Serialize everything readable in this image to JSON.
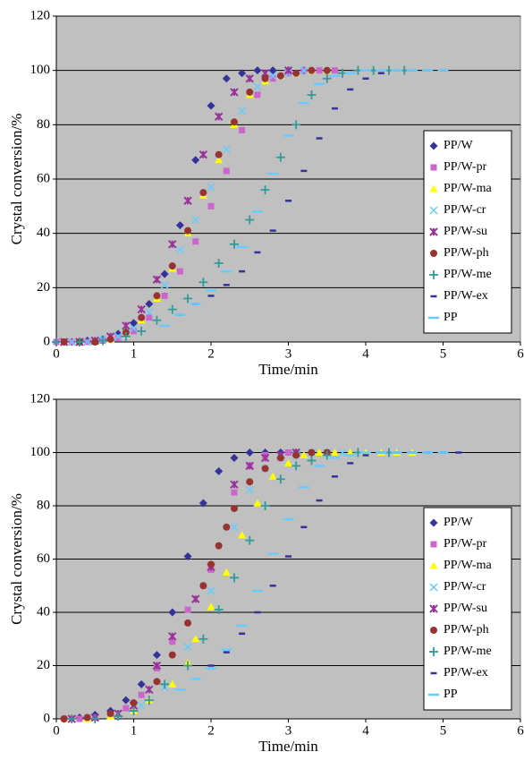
{
  "chart_data": [
    {
      "type": "scatter",
      "xlabel": "Time/min",
      "ylabel": "Crystal conversion/%",
      "xlim": [
        0,
        6
      ],
      "ylim": [
        0,
        120
      ],
      "xticks": [
        0,
        1,
        2,
        3,
        4,
        5,
        6
      ],
      "yticks": [
        0,
        20,
        40,
        60,
        80,
        100,
        120
      ],
      "grid": true,
      "legend": "right",
      "series": [
        {
          "name": "PP/W",
          "color": "#333399",
          "marker": "diamond",
          "x": [
            0,
            0.2,
            0.4,
            0.6,
            0.8,
            1.0,
            1.2,
            1.4,
            1.6,
            1.8,
            2.0,
            2.2,
            2.4,
            2.6,
            2.8,
            3.0,
            3.2
          ],
          "values": [
            0,
            0,
            0.5,
            1,
            3,
            7,
            14,
            25,
            43,
            67,
            87,
            97,
            99,
            100,
            100,
            100,
            100
          ]
        },
        {
          "name": "PP/W-pr",
          "color": "#cc66cc",
          "marker": "square",
          "x": [
            0,
            0.2,
            0.4,
            0.6,
            0.8,
            1.0,
            1.2,
            1.4,
            1.6,
            1.8,
            2.0,
            2.2,
            2.4,
            2.6,
            2.8,
            3.0,
            3.2,
            3.4,
            3.6
          ],
          "values": [
            0,
            0,
            0,
            0.5,
            1.5,
            4,
            9,
            17,
            26,
            37,
            50,
            63,
            78,
            91,
            97,
            99,
            100,
            100,
            100
          ]
        },
        {
          "name": "PP/W-ma",
          "color": "#ffff00",
          "marker": "triangle",
          "x": [
            0.1,
            0.3,
            0.5,
            0.7,
            0.9,
            1.1,
            1.3,
            1.5,
            1.7,
            1.9,
            2.1,
            2.3,
            2.5,
            2.7,
            2.9,
            3.1,
            3.3,
            3.5
          ],
          "values": [
            0,
            0,
            0,
            1,
            2.5,
            8,
            16,
            27,
            40,
            54,
            67,
            80,
            91,
            96,
            98,
            99,
            100,
            100
          ]
        },
        {
          "name": "PP/W-cr",
          "color": "#66ccff",
          "marker": "x",
          "x": [
            0.2,
            0.4,
            0.6,
            0.8,
            1.0,
            1.2,
            1.4,
            1.6,
            1.8,
            2.0,
            2.2,
            2.4,
            2.6,
            2.8,
            3.0,
            3.2
          ],
          "values": [
            0,
            0,
            1,
            2,
            5,
            11,
            21,
            34,
            45,
            57,
            71,
            85,
            94,
            98,
            99,
            100
          ]
        },
        {
          "name": "PP/W-su",
          "color": "#993399",
          "marker": "star",
          "x": [
            0.1,
            0.3,
            0.5,
            0.7,
            0.9,
            1.1,
            1.3,
            1.5,
            1.7,
            1.9,
            2.1,
            2.3,
            2.5,
            2.7,
            3.0
          ],
          "values": [
            0,
            0,
            0.5,
            2,
            6,
            12,
            23,
            36,
            52,
            69,
            83,
            92,
            97,
            99,
            100
          ]
        },
        {
          "name": "PP/W-ph",
          "color": "#993333",
          "marker": "circle",
          "x": [
            0.1,
            0.3,
            0.5,
            0.7,
            0.9,
            1.1,
            1.3,
            1.5,
            1.7,
            1.9,
            2.1,
            2.3,
            2.5,
            2.7,
            2.9,
            3.1,
            3.3,
            3.5
          ],
          "values": [
            0,
            0,
            0,
            1,
            3.5,
            9,
            17,
            28,
            41,
            55,
            69,
            81,
            92,
            97,
            98,
            99,
            100,
            100
          ]
        },
        {
          "name": "PP/W-me",
          "color": "#339999",
          "marker": "plus",
          "x": [
            0,
            0.3,
            0.6,
            0.9,
            1.1,
            1.3,
            1.5,
            1.7,
            1.9,
            2.1,
            2.3,
            2.5,
            2.7,
            2.9,
            3.1,
            3.3,
            3.5,
            3.7,
            3.9,
            4.1,
            4.3,
            4.5
          ],
          "values": [
            0,
            0,
            0.5,
            2,
            4,
            8,
            12,
            16,
            22,
            29,
            36,
            45,
            56,
            68,
            80,
            91,
            97,
            99,
            100,
            100,
            100,
            100
          ]
        },
        {
          "name": "PP/W-ex",
          "color": "#333399",
          "marker": "dash",
          "x": [
            1.6,
            1.8,
            2.0,
            2.2,
            2.4,
            2.6,
            2.8,
            3.0,
            3.2,
            3.4,
            3.6,
            3.8,
            4.0,
            4.2,
            4.4,
            4.6,
            4.8,
            5.0
          ],
          "values": [
            10,
            14,
            17,
            21,
            26,
            33,
            41,
            52,
            63,
            75,
            86,
            93,
            97,
            99,
            100,
            100,
            100,
            100
          ]
        },
        {
          "name": "PP",
          "color": "#66ccff",
          "marker": "longdash",
          "x": [
            1.4,
            1.6,
            1.8,
            2.0,
            2.2,
            2.4,
            2.6,
            2.8,
            3.0,
            3.2,
            3.4,
            3.6,
            3.8,
            4.0,
            4.2,
            4.4,
            4.6,
            4.8,
            5.0
          ],
          "values": [
            6,
            10,
            14,
            19,
            26,
            35,
            48,
            62,
            76,
            88,
            95,
            98,
            99,
            100,
            100,
            100,
            100,
            100,
            100
          ]
        }
      ]
    },
    {
      "type": "scatter",
      "xlabel": "Time/min",
      "ylabel": "Crystal conversion/%",
      "xlim": [
        0,
        6
      ],
      "ylim": [
        0,
        120
      ],
      "xticks": [
        0,
        1,
        2,
        3,
        4,
        5,
        6
      ],
      "yticks": [
        0,
        20,
        40,
        60,
        80,
        100,
        120
      ],
      "grid": true,
      "legend": "right",
      "series": [
        {
          "name": "PP/W",
          "color": "#333399",
          "marker": "diamond",
          "x": [
            0.1,
            0.3,
            0.5,
            0.7,
            0.9,
            1.1,
            1.3,
            1.5,
            1.7,
            1.9,
            2.1,
            2.3,
            2.5,
            2.7,
            2.9,
            3.1
          ],
          "values": [
            0,
            0.5,
            1.5,
            3,
            7,
            13,
            24,
            40,
            61,
            81,
            93,
            98,
            100,
            100,
            100,
            100
          ]
        },
        {
          "name": "PP/W-pr",
          "color": "#cc66cc",
          "marker": "square",
          "x": [
            0.1,
            0.3,
            0.5,
            0.7,
            0.9,
            1.1,
            1.3,
            1.5,
            1.7,
            2.0,
            2.3,
            2.5,
            2.7,
            3.0
          ],
          "values": [
            0,
            0,
            0.5,
            1.5,
            4,
            9,
            19,
            29,
            41,
            56,
            85,
            95,
            99,
            100
          ]
        },
        {
          "name": "PP/W-ma",
          "color": "#ffff00",
          "marker": "triangle",
          "x": [
            0.1,
            0.4,
            0.7,
            1.0,
            1.2,
            1.5,
            1.7,
            1.8,
            2.0,
            2.2,
            2.4,
            2.6,
            2.8,
            3.0,
            3.2,
            3.4,
            3.6,
            3.8,
            4.0,
            4.2,
            4.4,
            4.6
          ],
          "values": [
            0,
            0,
            1,
            3,
            7,
            13,
            21,
            30,
            42,
            55,
            69,
            81,
            91,
            96,
            99,
            100,
            100,
            100,
            100,
            100,
            100,
            100
          ]
        },
        {
          "name": "PP/W-cr",
          "color": "#66ccff",
          "marker": "x",
          "x": [
            0.2,
            0.5,
            0.8,
            1.1,
            1.4,
            1.7,
            2.0,
            2.3,
            2.5,
            2.7,
            2.9,
            3.1,
            3.3,
            3.5,
            3.7
          ],
          "values": [
            0,
            0.5,
            2,
            5,
            12,
            27,
            48,
            72,
            86,
            94,
            98,
            99,
            100,
            100,
            100
          ]
        },
        {
          "name": "PP/W-su",
          "color": "#993399",
          "marker": "star",
          "x": [
            0.2,
            0.5,
            0.8,
            1.0,
            1.2,
            1.3,
            1.5,
            1.8,
            2.0,
            2.3,
            2.5,
            2.7,
            2.9,
            3.1
          ],
          "values": [
            0,
            0.5,
            2,
            5,
            11,
            20,
            31,
            45,
            57,
            88,
            95,
            98,
            99,
            100
          ]
        },
        {
          "name": "PP/W-ph",
          "color": "#993333",
          "marker": "circle",
          "x": [
            0.1,
            0.4,
            0.7,
            1.0,
            1.3,
            1.5,
            1.7,
            1.9,
            2.0,
            2.1,
            2.2,
            2.3,
            2.5,
            2.7,
            2.9,
            3.1,
            3.3,
            3.5
          ],
          "values": [
            0,
            0.5,
            2,
            6,
            14,
            24,
            36,
            50,
            58,
            65,
            72,
            79,
            89,
            94,
            98,
            99,
            100,
            100
          ]
        },
        {
          "name": "PP/W-me",
          "color": "#339999",
          "marker": "plus",
          "x": [
            0.2,
            0.5,
            0.8,
            1.0,
            1.2,
            1.4,
            1.7,
            1.9,
            2.1,
            2.3,
            2.5,
            2.7,
            2.9,
            3.1,
            3.3,
            3.5,
            3.9,
            4.3
          ],
          "values": [
            0,
            0,
            1,
            3,
            7,
            13,
            20,
            30,
            41,
            53,
            67,
            80,
            90,
            95,
            97,
            99,
            100,
            100
          ]
        },
        {
          "name": "PP/W-ex",
          "color": "#333399",
          "marker": "dash",
          "x": [
            2.0,
            2.2,
            2.4,
            2.6,
            2.8,
            3.0,
            3.2,
            3.4,
            3.6,
            3.8,
            4.0,
            4.2,
            4.4,
            4.6,
            4.8,
            5.0,
            5.2
          ],
          "values": [
            20,
            25,
            32,
            40,
            50,
            61,
            72,
            82,
            91,
            96,
            99,
            100,
            100,
            100,
            100,
            100,
            100
          ]
        },
        {
          "name": "PP",
          "color": "#66ccff",
          "marker": "longdash",
          "x": [
            1.6,
            1.8,
            2.0,
            2.2,
            2.4,
            2.6,
            2.8,
            3.0,
            3.2,
            3.4,
            3.6,
            3.8,
            4.0,
            4.2,
            4.4,
            4.6,
            4.8,
            5.0
          ],
          "values": [
            11,
            15,
            19,
            26,
            35,
            48,
            62,
            75,
            87,
            95,
            98,
            99,
            100,
            100,
            100,
            100,
            100,
            100
          ]
        }
      ]
    }
  ]
}
